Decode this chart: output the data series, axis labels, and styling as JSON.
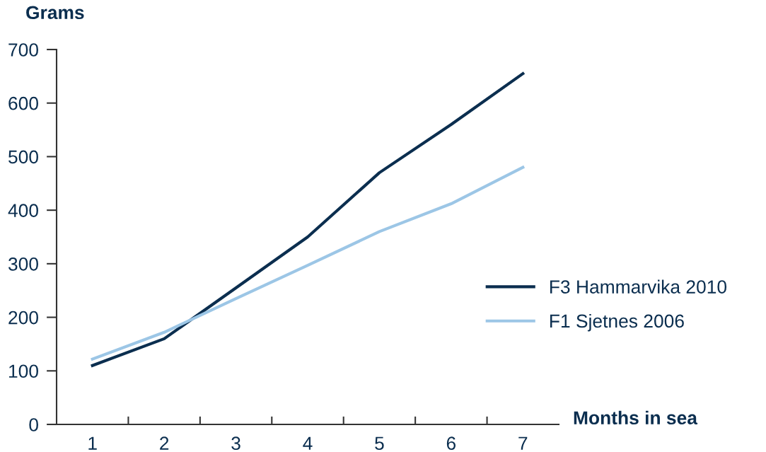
{
  "chart_data": {
    "type": "line",
    "xlabel": "Months in sea",
    "ylabel": "Grams",
    "x": [
      1,
      2,
      3,
      4,
      5,
      6,
      7
    ],
    "series": [
      {
        "name": "F3 Hammarvika 2010",
        "color": "#0b2e4f",
        "values": [
          110,
          160,
          255,
          350,
          470,
          560,
          655
        ]
      },
      {
        "name": "F1 Sjetnes 2006",
        "color": "#9cc6e6",
        "values": [
          122,
          172,
          235,
          297,
          360,
          412,
          480
        ]
      }
    ],
    "xlim": [
      0.5,
      7.5
    ],
    "xticks": [
      1,
      {
        "value": 1.5,
        "label": null
      },
      2,
      {
        "value": 2.5,
        "label": null
      },
      3,
      {
        "value": 3.5,
        "label": null
      },
      4,
      {
        "value": 4.5,
        "label": null
      },
      5,
      {
        "value": 5.5,
        "label": null
      },
      6,
      {
        "value": 6.5,
        "label": null
      },
      7
    ],
    "ylim": [
      0,
      700
    ],
    "yticks": [
      0,
      100,
      200,
      300,
      400,
      500,
      600,
      700
    ],
    "grid": false,
    "legend": "right",
    "marker": "none",
    "line_style": "solid"
  }
}
